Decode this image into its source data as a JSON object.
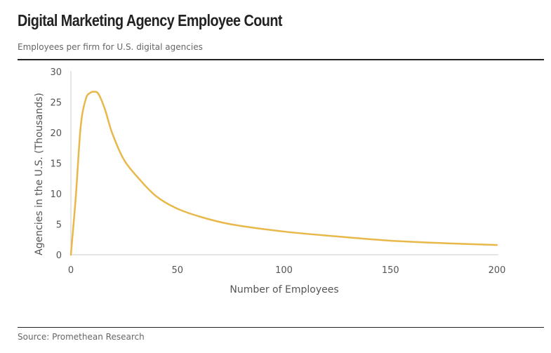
{
  "header": {
    "title": "Digital Marketing Agency Employee Count",
    "subtitle": "Employees per firm for U.S. digital agencies"
  },
  "footer": {
    "source": "Source: Promethean Research"
  },
  "chart_data": {
    "type": "line",
    "title": "Digital Marketing Agency Employee Count",
    "subtitle": "Employees per firm for U.S. digital agencies",
    "xlabel": "Number of Employees",
    "ylabel": "Agencies in the U.S. (Thousands)",
    "xlim": [
      0,
      200
    ],
    "ylim": [
      0,
      30
    ],
    "xticks": [
      "0",
      "50",
      "100",
      "150",
      "200"
    ],
    "yticks": [
      "0",
      "5",
      "10",
      "15",
      "20",
      "25",
      "30"
    ],
    "grid": false,
    "color": "#e8b84a",
    "series": [
      {
        "name": "Agencies",
        "x": [
          0,
          2.3,
          4.6,
          7,
          9,
          11,
          13,
          16,
          19.4,
          25,
          32.6,
          40,
          49,
          60,
          75,
          100,
          125,
          150,
          175,
          200
        ],
        "y": [
          0,
          9.5,
          21,
          25.5,
          26.5,
          26.7,
          26.3,
          23.8,
          19.9,
          15.5,
          12.2,
          9.6,
          7.7,
          6.3,
          5.0,
          3.8,
          3.0,
          2.3,
          1.9,
          1.6
        ]
      }
    ]
  }
}
